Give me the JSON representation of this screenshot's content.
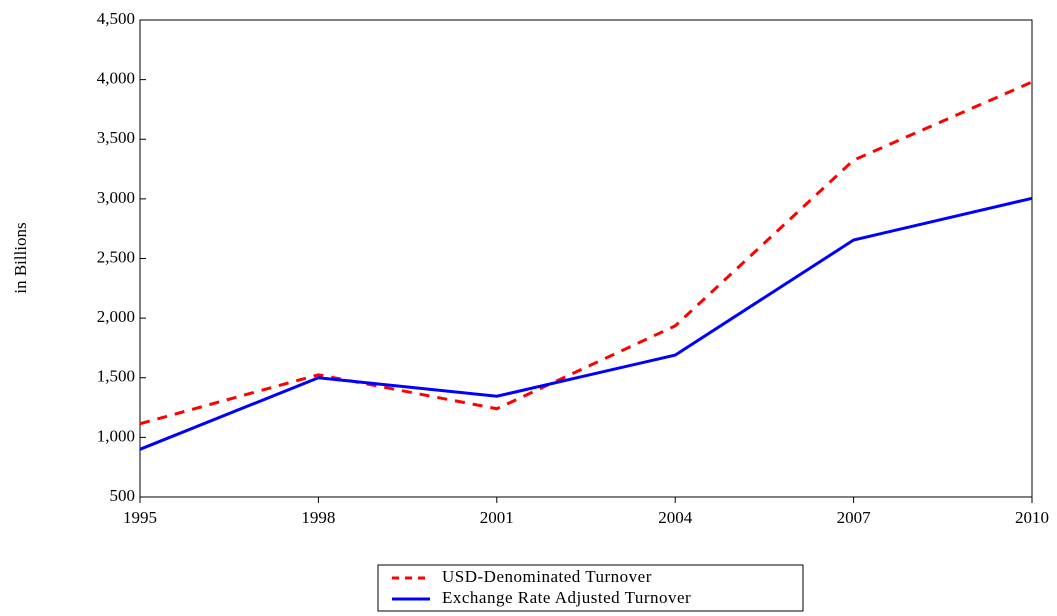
{
  "chart_data": {
    "type": "line",
    "y_label": "in Billions",
    "x": [
      1995,
      1998,
      2001,
      2004,
      2007,
      2010
    ],
    "series": [
      {
        "name": "USD-Denominated Turnover",
        "color": "#ff0000",
        "dash": true,
        "values": [
          1115,
          1525,
          1240,
          1935,
          3325,
          3980
        ]
      },
      {
        "name": "Exchange Rate Adjusted Turnover",
        "color": "#0000ff",
        "dash": false,
        "values": [
          900,
          1500,
          1345,
          1690,
          2655,
          3005
        ]
      }
    ],
    "xlim": [
      1995,
      2010
    ],
    "xticks": [
      1995,
      1998,
      2001,
      2004,
      2007,
      2010
    ],
    "ylim": [
      500,
      4500
    ],
    "yticks": [
      500,
      {
        "value": 1000,
        "label": "1,000"
      },
      {
        "value": 1500,
        "label": "1,500"
      },
      {
        "value": 2000,
        "label": "2,000"
      },
      {
        "value": 2500,
        "label": "2,500"
      },
      {
        "value": 3000,
        "label": "3,000"
      },
      {
        "value": 3500,
        "label": "3,500"
      },
      {
        "value": 4000,
        "label": "4,000"
      },
      {
        "value": 4500,
        "label": "4,500"
      }
    ],
    "legend": "bottom"
  }
}
